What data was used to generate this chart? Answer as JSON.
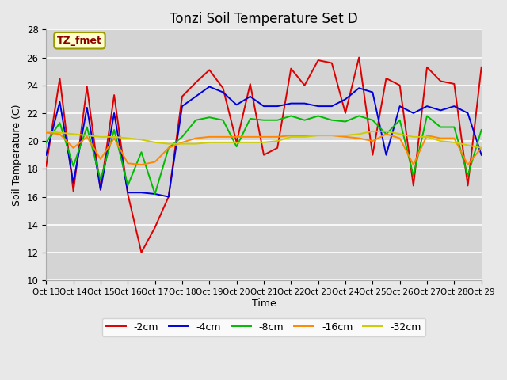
{
  "title": "Tonzi Soil Temperature Set D",
  "xlabel": "Time",
  "ylabel": "Soil Temperature (C)",
  "annotation": "TZ_fmet",
  "ylim": [
    10,
    28
  ],
  "background_color": "#e8e8e8",
  "plot_bg_color": "#d4d4d4",
  "title_fontsize": 12,
  "axis_fontsize": 9,
  "legend_fontsize": 9,
  "xtick_labels": [
    "Oct 13",
    "Oct 14",
    "Oct 15",
    "Oct 16",
    "Oct 17",
    "Oct 18",
    "Oct 19",
    "Oct 20",
    "Oct 21",
    "Oct 22",
    "Oct 23",
    "Oct 24",
    "Oct 25",
    "Oct 26",
    "Oct 27",
    "Oct 28",
    "Oct 29"
  ],
  "series": {
    "-2cm": {
      "color": "#dd0000",
      "x": [
        0,
        1,
        2,
        3,
        4,
        5,
        6,
        7,
        8,
        9,
        10,
        11,
        12,
        13,
        14,
        15,
        16,
        17,
        18,
        19,
        20,
        21,
        22,
        23,
        24,
        25,
        26,
        27,
        28,
        29,
        30,
        31,
        32
      ],
      "y": [
        18.2,
        24.5,
        16.4,
        23.9,
        16.5,
        23.3,
        16.2,
        12.0,
        13.8,
        16.0,
        23.2,
        24.2,
        25.1,
        23.8,
        19.9,
        24.1,
        19.0,
        19.5,
        25.2,
        24.0,
        25.8,
        25.6,
        22.0,
        26.0,
        19.0,
        24.5,
        24.0,
        16.8,
        25.3,
        24.3,
        24.1,
        16.8,
        25.3
      ]
    },
    "-4cm": {
      "color": "#0000dd",
      "x": [
        0,
        1,
        2,
        3,
        4,
        5,
        6,
        7,
        8,
        9,
        10,
        11,
        12,
        13,
        14,
        15,
        16,
        17,
        18,
        19,
        20,
        21,
        22,
        23,
        24,
        25,
        26,
        27,
        28,
        29,
        30,
        31,
        32
      ],
      "y": [
        19.0,
        22.8,
        17.0,
        22.4,
        16.5,
        22.0,
        16.3,
        16.3,
        16.2,
        16.0,
        22.5,
        23.2,
        23.9,
        23.5,
        22.6,
        23.2,
        22.5,
        22.5,
        22.7,
        22.7,
        22.5,
        22.5,
        23.0,
        23.8,
        23.5,
        19.0,
        22.5,
        22.0,
        22.5,
        22.2,
        22.5,
        22.0,
        19.0
      ]
    },
    "-8cm": {
      "color": "#00bb00",
      "x": [
        0,
        1,
        2,
        3,
        4,
        5,
        6,
        7,
        8,
        9,
        10,
        11,
        12,
        13,
        14,
        15,
        16,
        17,
        18,
        19,
        20,
        21,
        22,
        23,
        24,
        25,
        26,
        27,
        28,
        29,
        30,
        31,
        32
      ],
      "y": [
        19.9,
        21.3,
        18.2,
        21.0,
        17.2,
        20.8,
        16.8,
        19.2,
        16.2,
        19.5,
        20.3,
        21.5,
        21.7,
        21.5,
        19.6,
        21.6,
        21.5,
        21.5,
        21.8,
        21.5,
        21.8,
        21.5,
        21.4,
        21.8,
        21.5,
        20.5,
        21.5,
        17.5,
        21.8,
        21.0,
        21.0,
        17.5,
        20.8
      ]
    },
    "-16cm": {
      "color": "#ff8800",
      "x": [
        0,
        1,
        2,
        3,
        4,
        5,
        6,
        7,
        8,
        9,
        10,
        11,
        12,
        13,
        14,
        15,
        16,
        17,
        18,
        19,
        20,
        21,
        22,
        23,
        24,
        25,
        26,
        27,
        28,
        29,
        30,
        31,
        32
      ],
      "y": [
        20.6,
        20.5,
        19.5,
        20.3,
        18.7,
        20.2,
        18.4,
        18.3,
        18.5,
        19.5,
        19.9,
        20.2,
        20.3,
        20.3,
        20.3,
        20.3,
        20.3,
        20.3,
        20.4,
        20.4,
        20.4,
        20.4,
        20.3,
        20.2,
        20.0,
        20.5,
        20.2,
        18.3,
        20.4,
        20.2,
        20.2,
        18.3,
        19.5
      ]
    },
    "-32cm": {
      "color": "#cccc00",
      "x": [
        0,
        1,
        2,
        3,
        4,
        5,
        6,
        7,
        8,
        9,
        10,
        11,
        12,
        13,
        14,
        15,
        16,
        17,
        18,
        19,
        20,
        21,
        22,
        23,
        24,
        25,
        26,
        27,
        28,
        29,
        30,
        31,
        32
      ],
      "y": [
        20.7,
        20.6,
        20.5,
        20.4,
        20.3,
        20.3,
        20.2,
        20.1,
        19.9,
        19.8,
        19.8,
        19.8,
        19.9,
        19.9,
        19.9,
        19.9,
        19.9,
        20.0,
        20.3,
        20.3,
        20.4,
        20.4,
        20.4,
        20.5,
        20.7,
        20.7,
        20.5,
        20.3,
        20.3,
        20.0,
        19.9,
        19.7,
        19.5
      ]
    }
  }
}
